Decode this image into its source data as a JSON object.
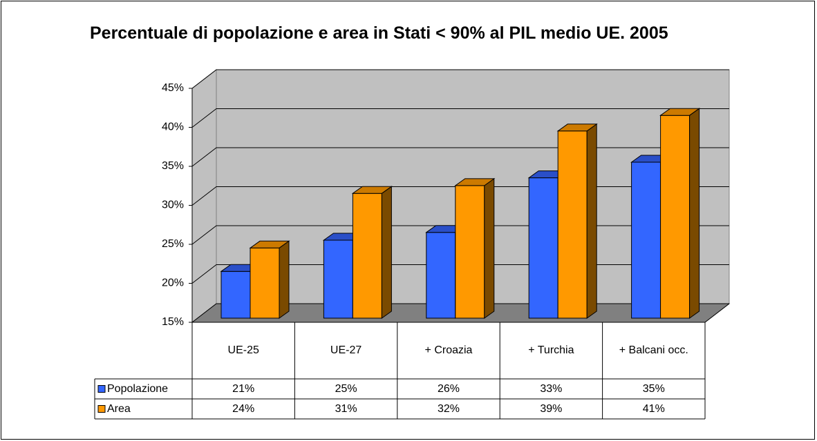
{
  "chart_data": {
    "type": "bar3d",
    "title": "Percentuale di popolazione e area in Stati < 90% al PIL medio UE. 2005",
    "categories": [
      "UE-25",
      "UE-27",
      "+ Croazia",
      "+ Turchia",
      "+ Balcani occ."
    ],
    "series": [
      {
        "name": "Popolazione",
        "color": "#3366ff",
        "values": [
          21,
          25,
          26,
          33,
          35
        ],
        "value_labels": [
          "21%",
          "25%",
          "26%",
          "33%",
          "35%"
        ]
      },
      {
        "name": "Area",
        "color": "#ff9900",
        "values": [
          24,
          31,
          32,
          39,
          41
        ],
        "value_labels": [
          "24%",
          "31%",
          "32%",
          "39%",
          "41%"
        ]
      }
    ],
    "ylim": [
      15,
      45
    ],
    "yticks": [
      {
        "value": 15,
        "label": "15%"
      },
      {
        "value": 20,
        "label": "20%"
      },
      {
        "value": 25,
        "label": "25%"
      },
      {
        "value": 30,
        "label": "30%"
      },
      {
        "value": 35,
        "label": "35%"
      },
      {
        "value": 40,
        "label": "40%"
      },
      {
        "value": 45,
        "label": "45%"
      }
    ],
    "grid": true
  }
}
